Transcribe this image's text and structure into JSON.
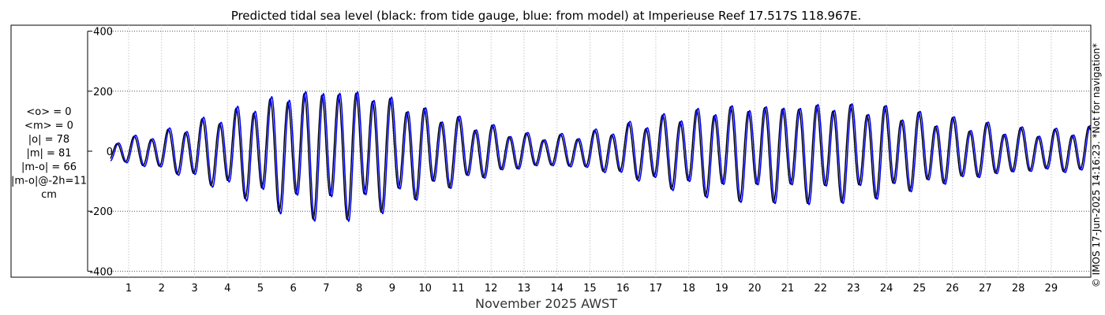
{
  "chart_data": {
    "type": "line",
    "title": "Predicted tidal sea level (black: from tide gauge, blue: from model) at Imperieuse Reef 17.517S 118.967E.",
    "xlabel": "November 2025 AWST",
    "ylabel": "",
    "x_unit": "days of November 2025",
    "xlim": [
      0.45,
      30.2
    ],
    "ylim": [
      -420,
      420
    ],
    "yticks": [
      -400,
      -200,
      0,
      200,
      400
    ],
    "ytick_labels": [
      "-400",
      "-200",
      "0",
      "200",
      "400"
    ],
    "xticks": [
      1,
      2,
      3,
      4,
      5,
      6,
      7,
      8,
      9,
      10,
      11,
      12,
      13,
      14,
      15,
      16,
      17,
      18,
      19,
      20,
      21,
      22,
      23,
      24,
      25,
      26,
      27,
      28,
      29
    ],
    "xtick_labels": [
      "1",
      "2",
      "3",
      "4",
      "5",
      "6",
      "7",
      "8",
      "9",
      "10",
      "11",
      "12",
      "13",
      "14",
      "15",
      "16",
      "17",
      "18",
      "19",
      "20",
      "21",
      "22",
      "23",
      "24",
      "25",
      "26",
      "27",
      "28",
      "29"
    ],
    "grid": true,
    "stats_text": [
      "<o> = 0",
      "<m> = 0",
      "|o| = 78",
      "|m| = 81",
      "|m-o| = 66",
      "|m-o|@-2h=11",
      "cm"
    ],
    "side_note": "© IMOS 17-Jun-2025 14:16:23. *Not for navigation*",
    "series": [
      {
        "name": "from tide gauge",
        "color": "#000000",
        "period_hours": 12.42,
        "phase_offset_hours": 0,
        "amplitude_envelope": {
          "days": [
            0.5,
            2,
            3.5,
            5,
            6,
            7,
            8,
            9,
            10,
            11.5,
            13,
            14,
            15,
            16,
            17.5,
            19,
            20,
            21,
            22,
            23,
            24,
            25,
            26.5,
            28,
            29,
            30.2
          ],
          "amplitude": [
            30,
            55,
            100,
            150,
            180,
            190,
            185,
            160,
            125,
            85,
            50,
            45,
            55,
            75,
            110,
            135,
            140,
            140,
            145,
            140,
            130,
            110,
            85,
            65,
            60,
            70
          ]
        }
      },
      {
        "name": "from model",
        "color": "#0000ff",
        "period_hours": 12.42,
        "phase_offset_hours": 1.1,
        "amplitude_envelope": {
          "days": [
            0.5,
            2,
            3.5,
            5,
            6,
            7,
            8,
            9,
            10,
            11.5,
            13,
            14,
            15,
            16,
            17.5,
            19,
            20,
            21,
            22,
            23,
            24,
            25,
            26.5,
            28,
            29,
            30.2
          ],
          "amplitude": [
            32,
            57,
            103,
            155,
            185,
            195,
            190,
            165,
            128,
            88,
            52,
            47,
            57,
            78,
            113,
            138,
            143,
            143,
            148,
            143,
            133,
            113,
            88,
            67,
            62,
            72
          ]
        }
      }
    ]
  }
}
